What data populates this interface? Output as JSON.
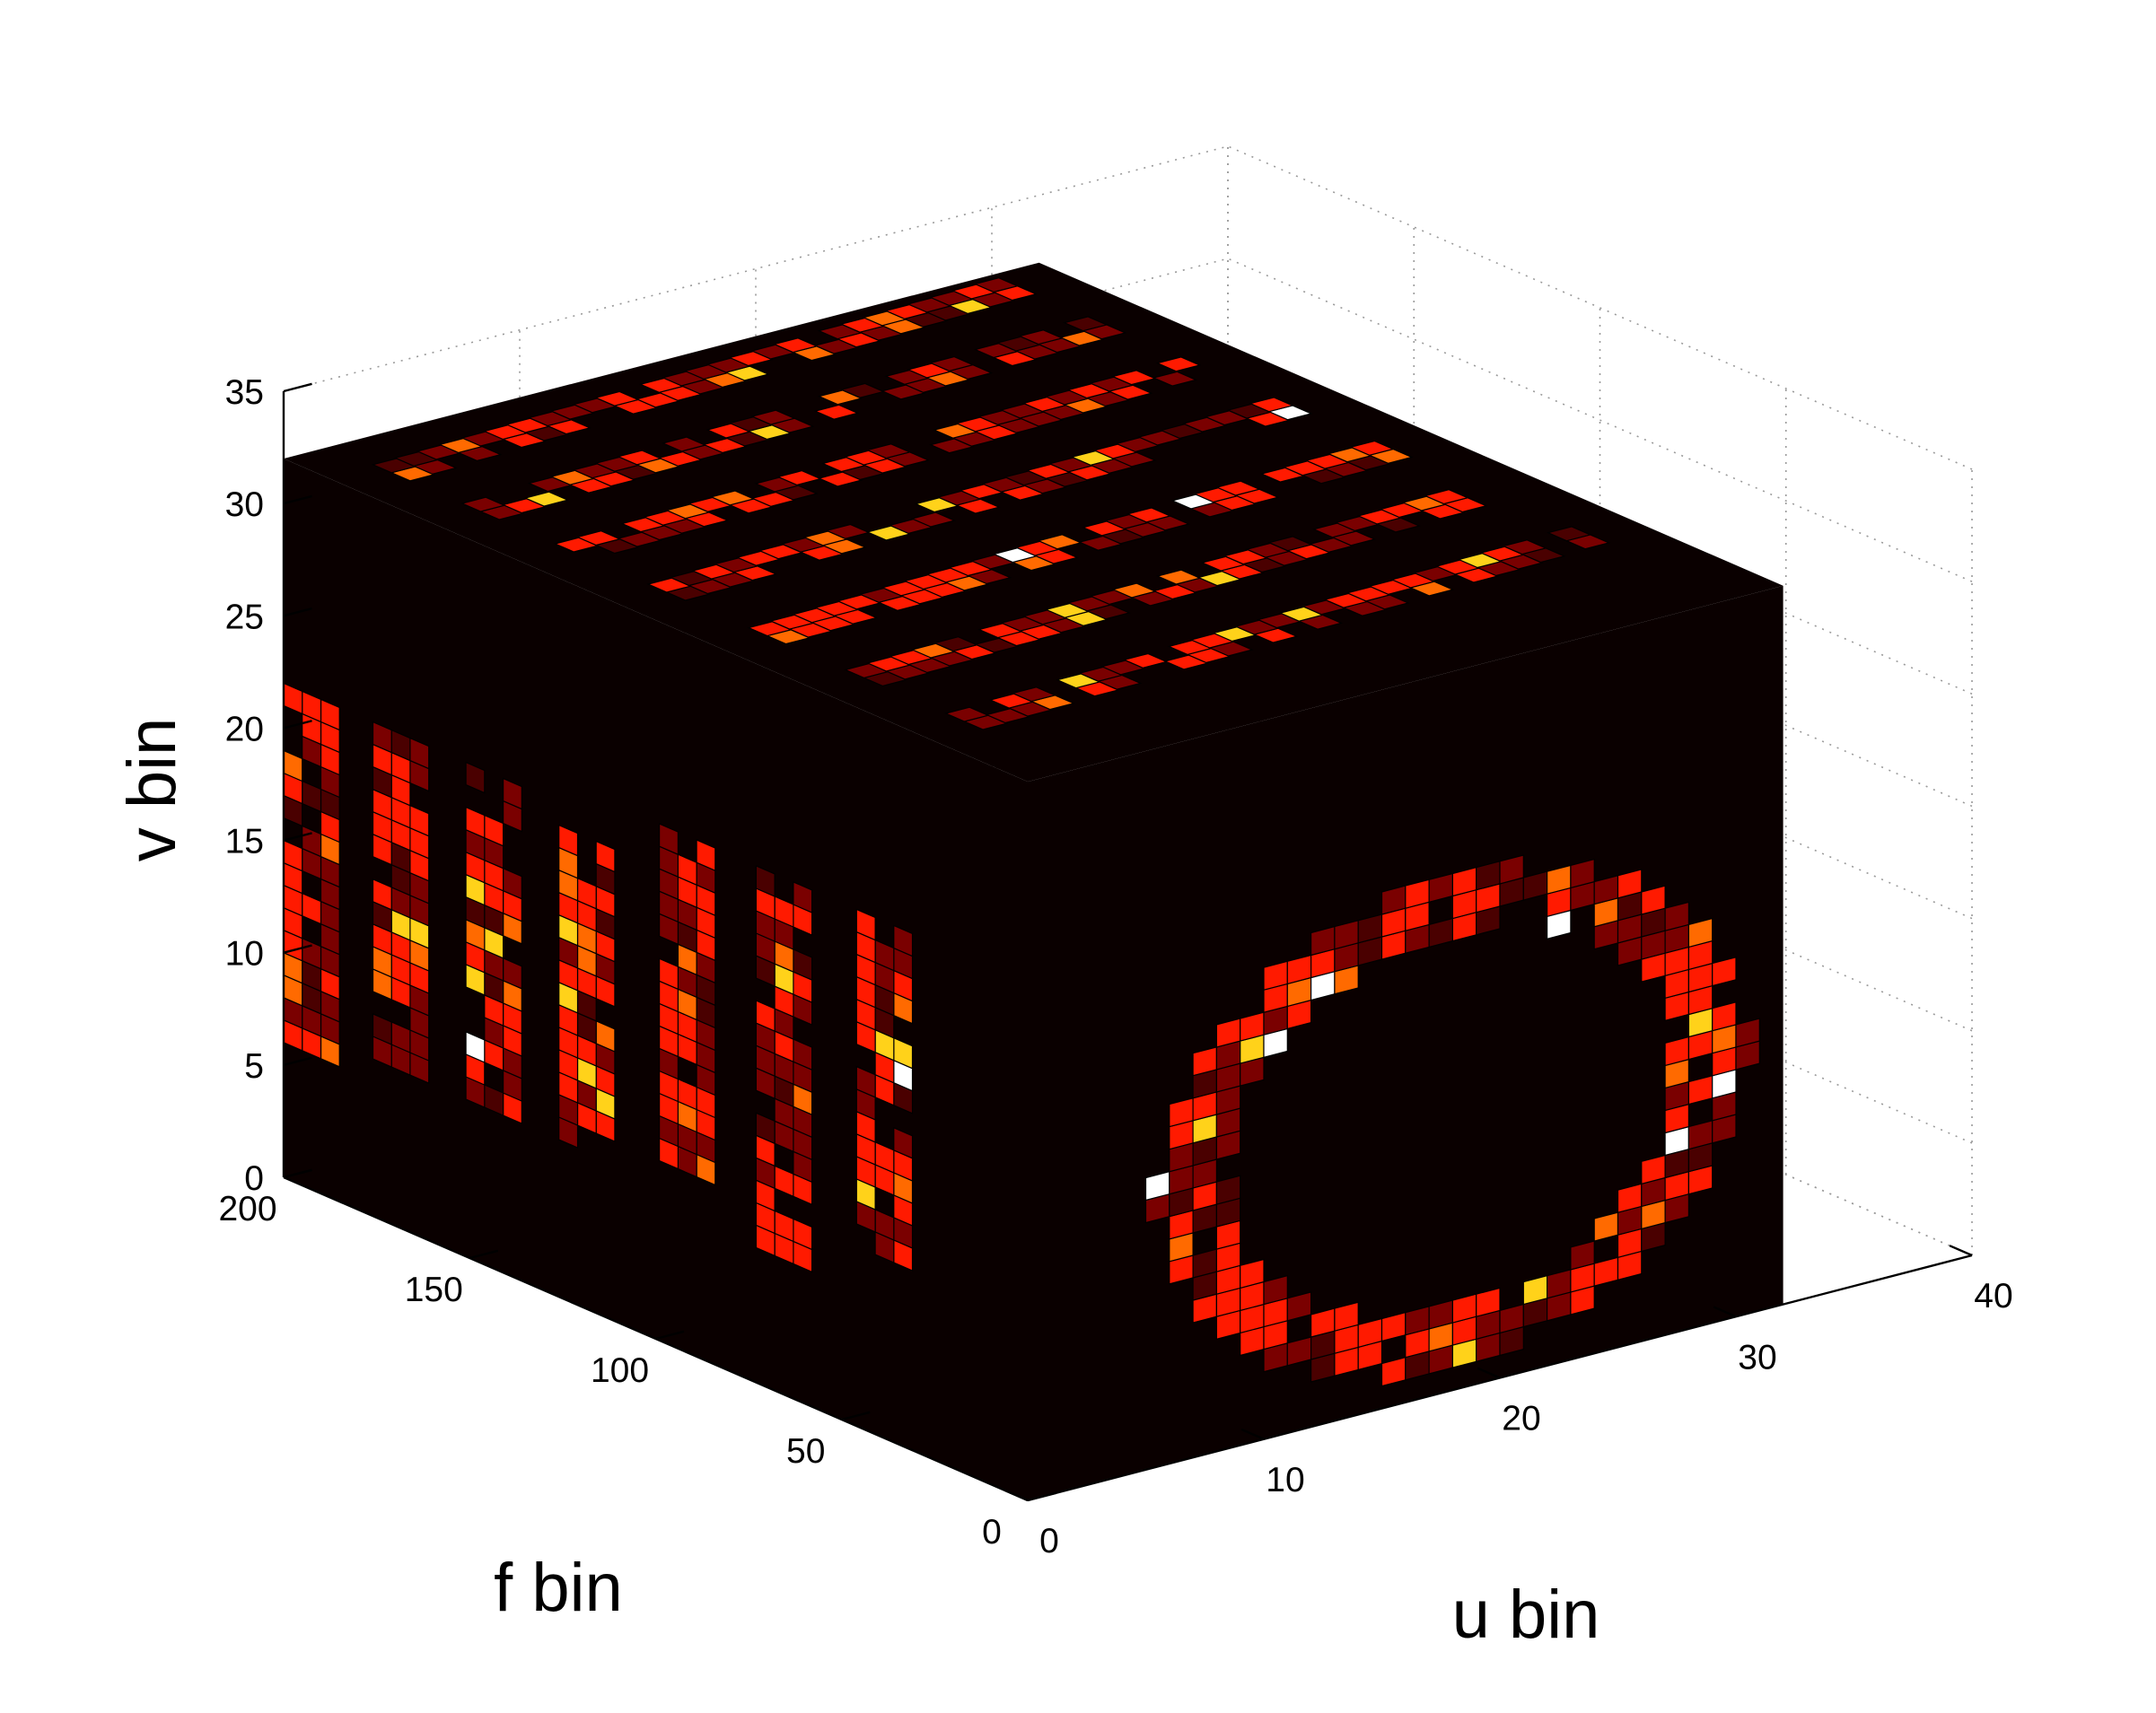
{
  "chart_data": {
    "type": "heatmap",
    "title": "",
    "xlabel": "u bin",
    "ylabel": "f bin",
    "zlabel": "v bin",
    "x_ticks": [
      "0",
      "10",
      "20",
      "30",
      "40"
    ],
    "y_ticks": [
      "0",
      "50",
      "100",
      "150",
      "200"
    ],
    "z_ticks": [
      "0",
      "5",
      "10",
      "15",
      "20",
      "25",
      "30",
      "35"
    ],
    "xlim": [
      0,
      40
    ],
    "ylim": [
      0,
      200
    ],
    "zlim": [
      0,
      35
    ],
    "volume_extent": {
      "u": [
        0,
        32
      ],
      "f": [
        0,
        200
      ],
      "v": [
        0,
        32
      ]
    },
    "grid": true,
    "colormap": "hot",
    "colors": {
      "background": "#0a0000",
      "low": "#7a0000",
      "mid": "#ff1a00",
      "high": "#ffd21a",
      "max": "#ffffff"
    },
    "front_face_ring": {
      "plane": "f = 0",
      "center_u": 18,
      "center_v": 12,
      "radius_u": 11,
      "radius_v": 9.5,
      "thickness_bins": 1.5
    },
    "side_face_slices": {
      "plane": "u = 0",
      "count": 7,
      "f_centers": [
        190,
        166,
        141,
        116,
        89,
        63,
        36
      ],
      "v_range": [
        6,
        24
      ]
    },
    "top_face_bands": {
      "plane": "v = 32",
      "count": 7,
      "f_centers": [
        190,
        166,
        141,
        116,
        89,
        63,
        36
      ]
    }
  }
}
